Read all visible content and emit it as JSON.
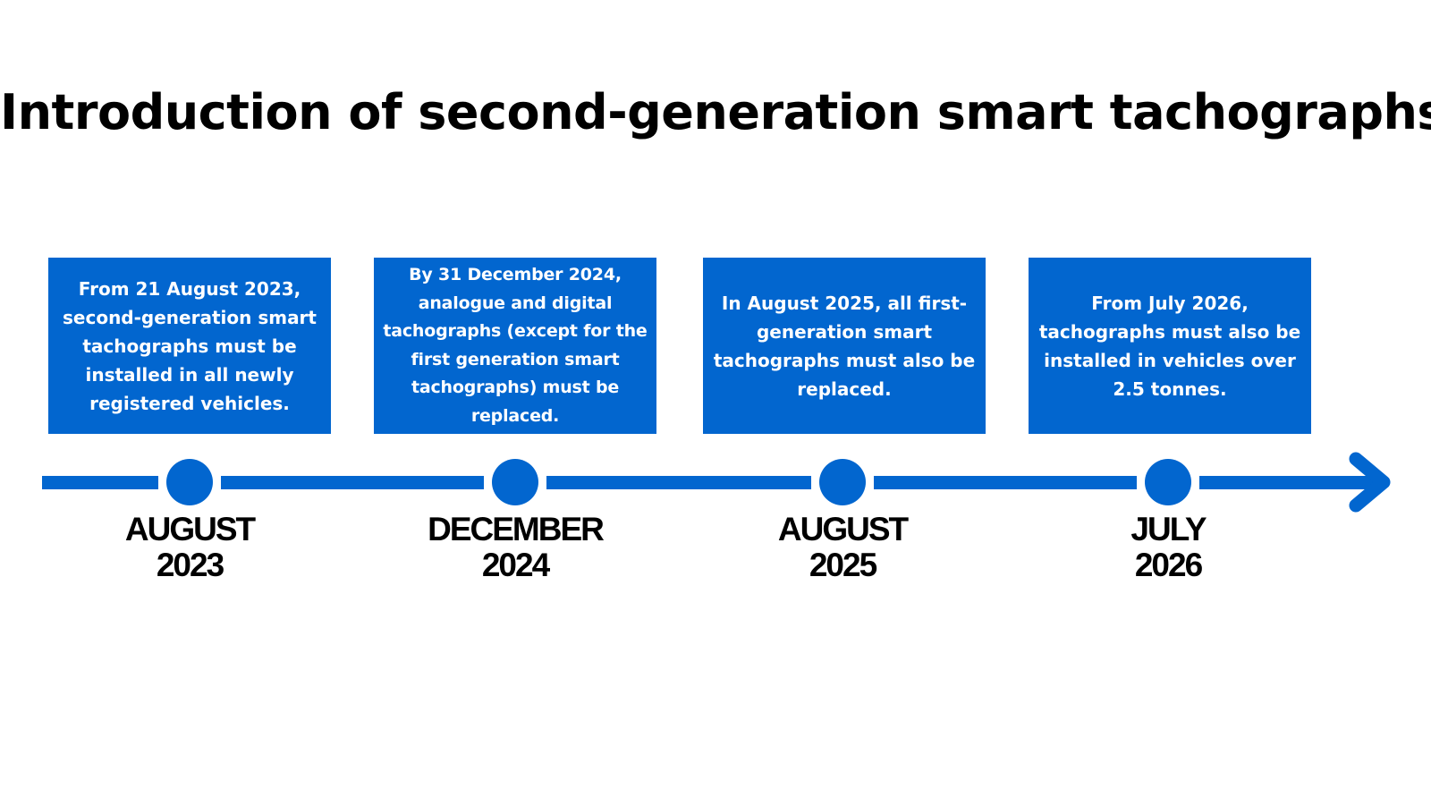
{
  "title": "Introduction of second-generation smart tachographs",
  "colors": {
    "accent": "#0266cf",
    "text": "#000000",
    "card_text": "#ffffff",
    "background": "#ffffff"
  },
  "timeline": {
    "arrow_icon": "arrow-right-icon",
    "milestones": [
      {
        "month": "AUGUST",
        "year": "2023",
        "description": "From 21 August 2023, second-generation smart tachographs must be installed in all newly registered vehicles."
      },
      {
        "month": "DECEMBER",
        "year": "2024",
        "description": "By 31 December 2024, analogue and digital tachographs (except for the first generation smart tachographs) must be replaced."
      },
      {
        "month": "AUGUST",
        "year": "2025",
        "description": "In August 2025, all first-generation smart tachographs must also be replaced."
      },
      {
        "month": "JULY",
        "year": "2026",
        "description": "From July 2026, tachographs must also be installed in vehicles over 2.5 tonnes."
      }
    ]
  }
}
